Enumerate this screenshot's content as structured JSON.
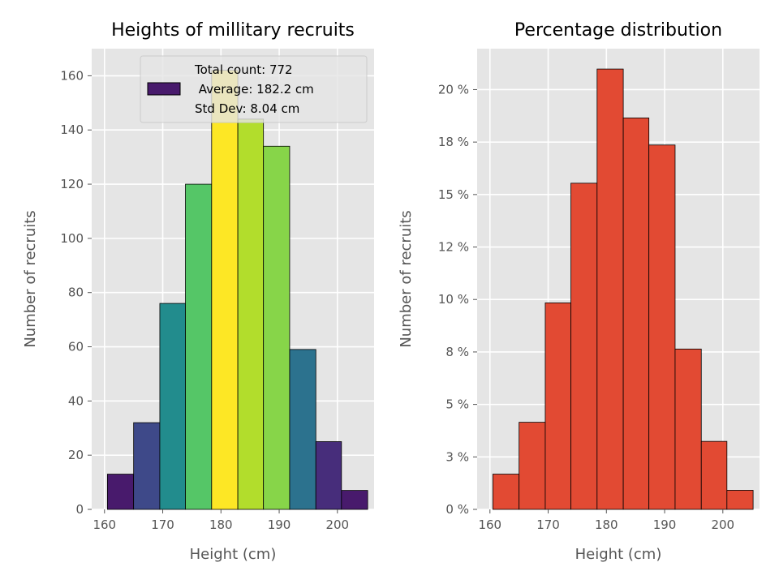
{
  "chart_data": [
    {
      "type": "bar",
      "title": "Heights of millitary recruits",
      "xlabel": "Height (cm)",
      "ylabel": "Number of recruits",
      "xlim": [
        157.8,
        206.3
      ],
      "ylim": [
        0,
        170
      ],
      "xticks": [
        160,
        170,
        180,
        190,
        200
      ],
      "yticks": [
        0,
        20,
        40,
        60,
        80,
        100,
        120,
        140,
        160
      ],
      "bin_edges": [
        160.5,
        165.0,
        169.5,
        173.9,
        178.4,
        182.9,
        187.3,
        191.8,
        196.3,
        200.7,
        205.2
      ],
      "values": [
        13,
        32,
        76,
        120,
        162,
        144,
        134,
        59,
        25,
        7
      ],
      "bar_colors": [
        "#481a6c",
        "#3e4989",
        "#228c8d",
        "#55c667",
        "#fde725",
        "#b2dd2c",
        "#87d549",
        "#2c728e",
        "#472d7b",
        "#481a6c"
      ],
      "legend": {
        "position": "upper right",
        "lines": [
          "Total count: 772",
          " Average: 182.2 cm",
          "Std Dev: 8.04 cm"
        ],
        "swatch_color": "#481a6c"
      },
      "grid": true
    },
    {
      "type": "bar",
      "title": "Percentage distribution",
      "xlabel": "Height (cm)",
      "ylabel": "Number of recruits",
      "xlim": [
        157.8,
        206.3
      ],
      "ylim": [
        0,
        0.2195
      ],
      "xticks": [
        160,
        170,
        180,
        190,
        200
      ],
      "ytick_values": [
        0,
        0.025,
        0.05,
        0.075,
        0.1,
        0.125,
        0.15,
        0.175,
        0.2
      ],
      "ytick_labels": [
        "0 %",
        "3 %",
        "5 %",
        "8 %",
        "10 %",
        "12 %",
        "15 %",
        "18 %",
        "20 %"
      ],
      "bin_edges": [
        160.5,
        165.0,
        169.5,
        173.9,
        178.4,
        182.9,
        187.3,
        191.8,
        196.3,
        200.7,
        205.2
      ],
      "values": [
        0.0168,
        0.0415,
        0.0984,
        0.1554,
        0.2098,
        0.1865,
        0.1736,
        0.0764,
        0.0324,
        0.0091
      ],
      "bar_color": "#e24a33",
      "grid": true
    }
  ]
}
